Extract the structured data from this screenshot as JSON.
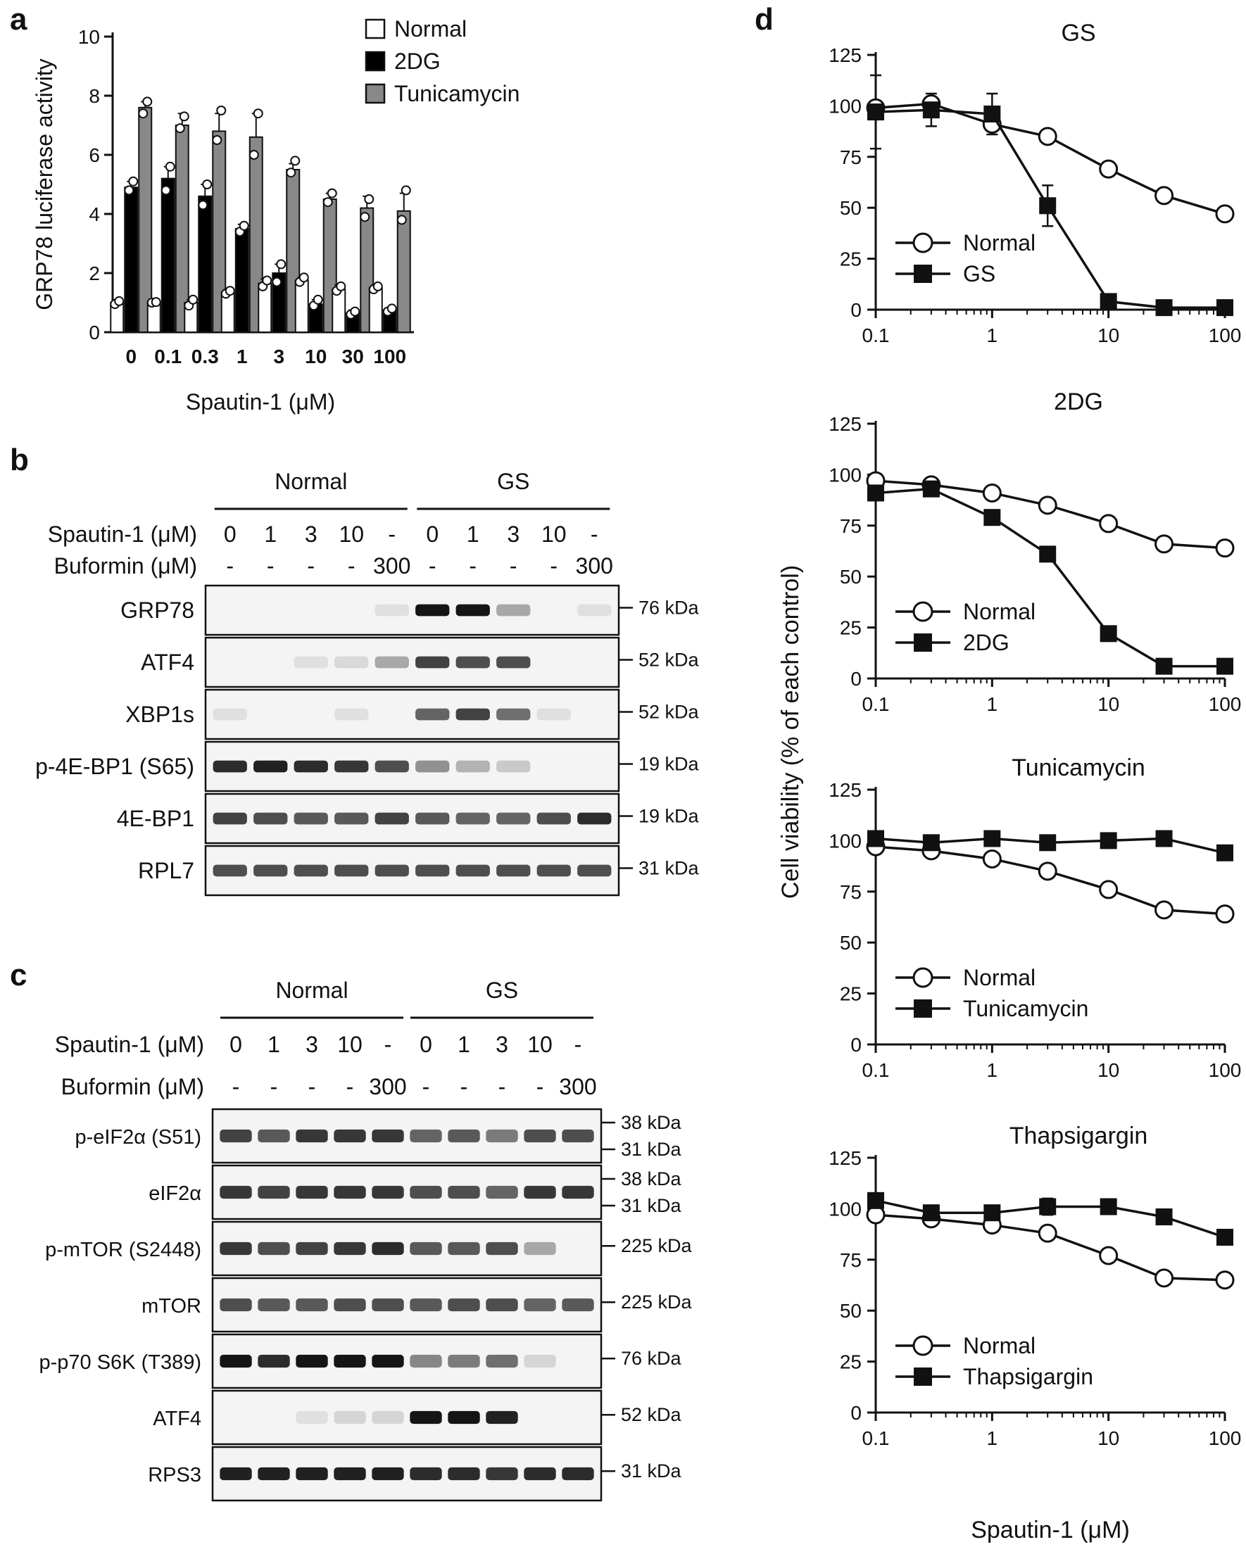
{
  "panels": {
    "a": {
      "letter": "a",
      "chart_data": {
        "type": "bar",
        "categories": [
          "0",
          "0.1",
          "0.3",
          "1",
          "3",
          "10",
          "30",
          "100"
        ],
        "series": [
          {
            "name": "Normal",
            "color": "#ffffff",
            "values": [
              1.0,
              1.0,
              1.0,
              1.35,
              1.65,
              1.75,
              1.45,
              1.5
            ],
            "err": [
              0.1,
              0.05,
              0.1,
              0.1,
              0.15,
              0.1,
              0.15,
              0.1
            ],
            "points": [
              [
                0.95,
                1.05
              ],
              [
                1.0,
                1.02
              ],
              [
                0.9,
                1.1
              ],
              [
                1.3,
                1.4
              ],
              [
                1.55,
                1.75
              ],
              [
                1.7,
                1.85
              ],
              [
                1.4,
                1.55
              ],
              [
                1.45,
                1.55
              ]
            ]
          },
          {
            "name": "2DG",
            "color": "#000000",
            "values": [
              4.9,
              5.2,
              4.6,
              3.5,
              2.0,
              0.95,
              0.65,
              0.75
            ],
            "err": [
              0.2,
              0.4,
              0.4,
              0.15,
              0.3,
              0.15,
              0.1,
              0.05
            ],
            "points": [
              [
                4.8,
                5.1
              ],
              [
                4.8,
                5.6
              ],
              [
                4.3,
                5.0
              ],
              [
                3.4,
                3.6
              ],
              [
                1.7,
                2.3
              ],
              [
                0.9,
                1.1
              ],
              [
                0.6,
                0.7
              ],
              [
                0.7,
                0.8
              ]
            ]
          },
          {
            "name": "Tunicamycin",
            "color": "#888888",
            "values": [
              7.6,
              7.0,
              6.8,
              6.6,
              5.5,
              4.5,
              4.2,
              4.1
            ],
            "err": [
              0.2,
              0.4,
              0.6,
              0.8,
              0.2,
              0.2,
              0.4,
              0.6
            ],
            "points": [
              [
                7.4,
                7.8
              ],
              [
                6.9,
                7.3
              ],
              [
                6.5,
                7.5
              ],
              [
                6.0,
                7.4
              ],
              [
                5.4,
                5.8
              ],
              [
                4.4,
                4.7
              ],
              [
                3.9,
                4.5
              ],
              [
                3.8,
                4.8
              ]
            ]
          }
        ],
        "ylabel": "GRP78 luciferase activity",
        "xlabel": "Spautin-1  (μM)",
        "ylim": [
          0,
          10
        ],
        "yticks": [
          "0",
          "2",
          "4",
          "6",
          "8",
          "10"
        ],
        "legend": "top-right"
      }
    },
    "b": {
      "letter": "b",
      "group_labels": [
        "Normal",
        "GS"
      ],
      "spautin_label": "Spautin-1  (μM)",
      "spautin_values": [
        "0",
        "1",
        "3",
        "10",
        "-",
        "0",
        "1",
        "3",
        "10",
        "-"
      ],
      "buformin_label": "Buformin (μM)",
      "buformin_values": [
        "-",
        "-",
        "-",
        "-",
        "300",
        "-",
        "-",
        "-",
        "-",
        "300"
      ],
      "blots": [
        {
          "label": "GRP78",
          "markers": [
            "76 kDa"
          ],
          "intensities": [
            0,
            0,
            0,
            0,
            0.05,
            0.95,
            0.95,
            0.3,
            0,
            0.05
          ]
        },
        {
          "label": "ATF4",
          "markers": [
            "52 kDa"
          ],
          "intensities": [
            0,
            0,
            0.05,
            0.08,
            0.3,
            0.75,
            0.7,
            0.7,
            0,
            0
          ]
        },
        {
          "label": "XBP1s",
          "markers": [
            "52 kDa"
          ],
          "intensities": [
            0.05,
            0,
            0,
            0.05,
            0,
            0.6,
            0.75,
            0.55,
            0.05,
            0
          ]
        },
        {
          "label": "p-4E-BP1 (S65)",
          "markers": [
            "19 kDa"
          ],
          "intensities": [
            0.85,
            0.9,
            0.85,
            0.8,
            0.7,
            0.4,
            0.25,
            0.15,
            0,
            0
          ]
        },
        {
          "label": "4E-BP1",
          "markers": [
            "19 kDa"
          ],
          "intensities": [
            0.75,
            0.7,
            0.65,
            0.65,
            0.75,
            0.65,
            0.6,
            0.6,
            0.7,
            0.85
          ]
        },
        {
          "label": "RPL7",
          "markers": [
            "31 kDa"
          ],
          "intensities": [
            0.7,
            0.7,
            0.7,
            0.7,
            0.7,
            0.7,
            0.7,
            0.7,
            0.7,
            0.7
          ]
        }
      ]
    },
    "c": {
      "letter": "c",
      "group_labels": [
        "Normal",
        "GS"
      ],
      "spautin_label": "Spautin-1  (μM)",
      "spautin_values": [
        "0",
        "1",
        "3",
        "10",
        "-",
        "0",
        "1",
        "3",
        "10",
        "-"
      ],
      "buformin_label": "Buformin (μM)",
      "buformin_values": [
        "-",
        "-",
        "-",
        "-",
        "300",
        "-",
        "-",
        "-",
        "-",
        "300"
      ],
      "blots": [
        {
          "label": "p-eIF2α (S51)",
          "markers": [
            "38 kDa",
            "31 kDa"
          ],
          "intensities": [
            0.75,
            0.65,
            0.8,
            0.8,
            0.8,
            0.6,
            0.65,
            0.5,
            0.7,
            0.7
          ]
        },
        {
          "label": "eIF2α",
          "markers": [
            "38 kDa",
            "31 kDa"
          ],
          "intensities": [
            0.8,
            0.75,
            0.8,
            0.8,
            0.8,
            0.7,
            0.7,
            0.6,
            0.8,
            0.8
          ]
        },
        {
          "label": "p-mTOR (S2448)",
          "markers": [
            "225 kDa"
          ],
          "intensities": [
            0.8,
            0.7,
            0.75,
            0.8,
            0.85,
            0.65,
            0.65,
            0.7,
            0.3,
            0
          ]
        },
        {
          "label": "mTOR",
          "markers": [
            "225 kDa"
          ],
          "intensities": [
            0.7,
            0.65,
            0.65,
            0.7,
            0.7,
            0.65,
            0.7,
            0.7,
            0.6,
            0.65
          ]
        },
        {
          "label": "p-p70 S6K (T389)",
          "markers": [
            "76 kDa"
          ],
          "intensities": [
            0.95,
            0.85,
            0.95,
            0.95,
            0.95,
            0.45,
            0.5,
            0.55,
            0.1,
            0
          ]
        },
        {
          "label": "ATF4",
          "markers": [
            "52 kDa"
          ],
          "intensities": [
            0,
            0,
            0.05,
            0.1,
            0.1,
            0.95,
            0.95,
            0.9,
            0,
            0
          ]
        },
        {
          "label": "RPS3",
          "markers": [
            "31 kDa"
          ],
          "intensities": [
            0.9,
            0.9,
            0.9,
            0.9,
            0.9,
            0.85,
            0.85,
            0.8,
            0.85,
            0.85
          ]
        }
      ]
    },
    "d": {
      "letter": "d",
      "ylabel": "Cell viability (% of each control)",
      "xlabel": "Spautin-1  (μM)",
      "charts": [
        {
          "type": "line",
          "title": "GS",
          "x": [
            0.1,
            0.3,
            1,
            3,
            10,
            30,
            100
          ],
          "ylim": [
            0,
            125
          ],
          "yticks": [
            "0",
            "25",
            "50",
            "75",
            "100",
            "125"
          ],
          "xticks": [
            "0.1",
            "1",
            "10",
            "100"
          ],
          "series": [
            {
              "name": "Normal",
              "marker": "open-circle",
              "values": [
                99,
                101,
                91,
                85,
                69,
                56,
                47
              ]
            },
            {
              "name": "GS",
              "marker": "filled-square",
              "values": [
                97,
                98,
                96,
                51,
                4,
                1,
                1
              ]
            }
          ],
          "err": [
            {
              "name": "GS",
              "values": [
                18,
                8,
                10,
                10,
                2,
                0,
                0
              ]
            }
          ],
          "legend": "bottom-left"
        },
        {
          "type": "line",
          "title": "2DG",
          "x": [
            0.1,
            0.3,
            1,
            3,
            10,
            30,
            100
          ],
          "ylim": [
            0,
            125
          ],
          "yticks": [
            "0",
            "25",
            "50",
            "75",
            "100",
            "125"
          ],
          "xticks": [
            "0.1",
            "1",
            "10",
            "100"
          ],
          "series": [
            {
              "name": "Normal",
              "marker": "open-circle",
              "values": [
                97,
                95,
                91,
                85,
                76,
                66,
                64
              ]
            },
            {
              "name": "2DG",
              "marker": "filled-square",
              "values": [
                91,
                93,
                79,
                61,
                22,
                6,
                6
              ]
            }
          ],
          "legend": "bottom-left"
        },
        {
          "type": "line",
          "title": "Tunicamycin",
          "x": [
            0.1,
            0.3,
            1,
            3,
            10,
            30,
            100
          ],
          "ylim": [
            0,
            125
          ],
          "yticks": [
            "0",
            "25",
            "50",
            "75",
            "100",
            "125"
          ],
          "xticks": [
            "0.1",
            "1",
            "10",
            "100"
          ],
          "series": [
            {
              "name": "Normal",
              "marker": "open-circle",
              "values": [
                97,
                95,
                91,
                85,
                76,
                66,
                64
              ]
            },
            {
              "name": "Tunicamycin",
              "marker": "filled-square",
              "values": [
                101,
                99,
                101,
                99,
                100,
                101,
                94
              ]
            }
          ],
          "legend": "bottom-left"
        },
        {
          "type": "line",
          "title": "Thapsigargin",
          "x": [
            0.1,
            0.3,
            1,
            3,
            10,
            30,
            100
          ],
          "ylim": [
            0,
            125
          ],
          "yticks": [
            "0",
            "25",
            "50",
            "75",
            "100",
            "125"
          ],
          "xticks": [
            "0.1",
            "1",
            "10",
            "100"
          ],
          "series": [
            {
              "name": "Normal",
              "marker": "open-circle",
              "values": [
                97,
                95,
                92,
                88,
                77,
                66,
                65
              ]
            },
            {
              "name": "Thapsigargin",
              "marker": "filled-square",
              "values": [
                104,
                98,
                98,
                101,
                101,
                96,
                86
              ]
            }
          ],
          "err": [
            {
              "name": "Thapsigargin",
              "values": [
                3,
                2,
                3,
                4,
                2,
                2,
                2
              ]
            }
          ],
          "legend": "bottom-left"
        }
      ]
    }
  }
}
